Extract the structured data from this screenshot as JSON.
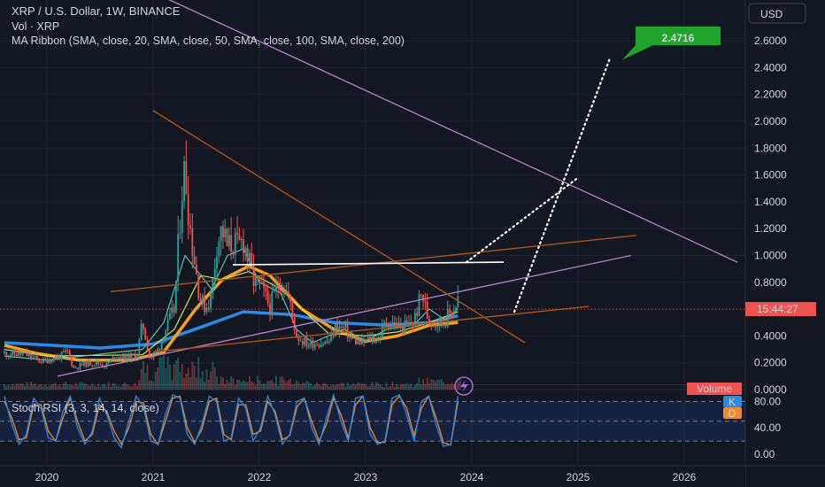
{
  "header": {
    "symbol_line": "XRP / U.S. Dollar, 1W, BINANCE",
    "volume_line": "Vol · XRP",
    "ribbon_line": "MA Ribbon (SMA, close, 20, SMA, close, 50, SMA, close, 100, SMA, close, 200)"
  },
  "price_axis": {
    "currency": "USD"
  },
  "stoch": {
    "label": "Stoch RSI (3, 3, 14, 14, close)",
    "k_badge": "K",
    "d_badge": "D"
  },
  "badges": {
    "target": "2.4716",
    "countdown": "15:44:27",
    "volume": "Volume"
  },
  "colors": {
    "background": "#131722",
    "up": "#26a69a",
    "down": "#ef5350",
    "ma20": "#5fc3a8",
    "ma50": "#d8e04a",
    "ma100": "#f7a01e",
    "ma200": "#2a8ae6",
    "purple_line": "#b07cc6",
    "brown_line": "#b0501a",
    "target_green": "#1fa52c",
    "stoch_k": "#2a8ae6",
    "stoch_d": "#ef8a2a"
  },
  "chart_data": [
    {
      "type": "candlestick",
      "title": "XRP / U.S. Dollar, 1W, BINANCE",
      "ylim": [
        0,
        2.8
      ],
      "y_ticks": [
        "2.6000",
        "2.4000",
        "2.2000",
        "2.0000",
        "1.8000",
        "1.6000",
        "1.4000",
        "1.2000",
        "1.0000",
        "0.8000",
        "0.6000",
        "0.4000",
        "0.2000",
        "0.0000"
      ],
      "x_ticks": [
        "2020",
        "2021",
        "2022",
        "2023",
        "2024",
        "2025",
        "2026"
      ],
      "price_path": [
        [
          2019.6,
          0.27
        ],
        [
          2019.8,
          0.26
        ],
        [
          2019.95,
          0.21
        ],
        [
          2020.1,
          0.24
        ],
        [
          2020.2,
          0.28
        ],
        [
          2020.25,
          0.16
        ],
        [
          2020.35,
          0.19
        ],
        [
          2020.45,
          0.2
        ],
        [
          2020.55,
          0.18
        ],
        [
          2020.65,
          0.25
        ],
        [
          2020.75,
          0.24
        ],
        [
          2020.85,
          0.26
        ],
        [
          2020.9,
          0.5
        ],
        [
          2020.97,
          0.23
        ],
        [
          2021.05,
          0.3
        ],
        [
          2021.12,
          0.45
        ],
        [
          2021.2,
          0.6
        ],
        [
          2021.27,
          1.5
        ],
        [
          2021.3,
          1.65
        ],
        [
          2021.35,
          1.2
        ],
        [
          2021.4,
          0.9
        ],
        [
          2021.45,
          0.65
        ],
        [
          2021.5,
          0.62
        ],
        [
          2021.55,
          0.72
        ],
        [
          2021.6,
          1.1
        ],
        [
          2021.65,
          1.2
        ],
        [
          2021.7,
          1.05
        ],
        [
          2021.75,
          1.1
        ],
        [
          2021.8,
          1.05
        ],
        [
          2021.85,
          1.12
        ],
        [
          2021.9,
          0.95
        ],
        [
          2021.95,
          0.8
        ],
        [
          2022.0,
          0.78
        ],
        [
          2022.1,
          0.62
        ],
        [
          2022.2,
          0.82
        ],
        [
          2022.27,
          0.7
        ],
        [
          2022.35,
          0.4
        ],
        [
          2022.45,
          0.34
        ],
        [
          2022.55,
          0.35
        ],
        [
          2022.65,
          0.35
        ],
        [
          2022.72,
          0.47
        ],
        [
          2022.8,
          0.45
        ],
        [
          2022.87,
          0.38
        ],
        [
          2022.95,
          0.34
        ],
        [
          2023.05,
          0.38
        ],
        [
          2023.12,
          0.38
        ],
        [
          2023.2,
          0.52
        ],
        [
          2023.27,
          0.48
        ],
        [
          2023.35,
          0.46
        ],
        [
          2023.45,
          0.5
        ],
        [
          2023.53,
          0.72
        ],
        [
          2023.58,
          0.55
        ],
        [
          2023.65,
          0.5
        ],
        [
          2023.72,
          0.5
        ],
        [
          2023.78,
          0.55
        ],
        [
          2023.84,
          0.62
        ],
        [
          2023.87,
          0.68
        ]
      ],
      "ma_ribbon": {
        "ma20": [
          [
            2019.6,
            0.25
          ],
          [
            2020.0,
            0.22
          ],
          [
            2020.9,
            0.3
          ],
          [
            2021.1,
            0.5
          ],
          [
            2021.3,
            1.0
          ],
          [
            2021.45,
            0.85
          ],
          [
            2021.55,
            0.75
          ],
          [
            2021.7,
            1.0
          ],
          [
            2021.85,
            1.05
          ],
          [
            2022.0,
            0.8
          ],
          [
            2022.2,
            0.72
          ],
          [
            2022.35,
            0.45
          ],
          [
            2022.5,
            0.35
          ],
          [
            2022.8,
            0.45
          ],
          [
            2023.0,
            0.36
          ],
          [
            2023.2,
            0.45
          ],
          [
            2023.45,
            0.48
          ],
          [
            2023.6,
            0.6
          ],
          [
            2023.75,
            0.52
          ],
          [
            2023.87,
            0.6
          ]
        ],
        "ma50": [
          [
            2019.6,
            0.3
          ],
          [
            2020.0,
            0.25
          ],
          [
            2020.9,
            0.26
          ],
          [
            2021.2,
            0.45
          ],
          [
            2021.45,
            0.85
          ],
          [
            2021.65,
            0.82
          ],
          [
            2021.9,
            0.88
          ],
          [
            2022.2,
            0.75
          ],
          [
            2022.4,
            0.6
          ],
          [
            2022.65,
            0.42
          ],
          [
            2023.0,
            0.4
          ],
          [
            2023.3,
            0.43
          ],
          [
            2023.6,
            0.5
          ],
          [
            2023.87,
            0.58
          ]
        ],
        "ma100": [
          [
            2019.6,
            0.33
          ],
          [
            2019.9,
            0.27
          ],
          [
            2020.3,
            0.22
          ],
          [
            2020.8,
            0.22
          ],
          [
            2021.1,
            0.28
          ],
          [
            2021.4,
            0.6
          ],
          [
            2021.65,
            0.82
          ],
          [
            2021.9,
            0.92
          ],
          [
            2022.1,
            0.85
          ],
          [
            2022.4,
            0.6
          ],
          [
            2022.7,
            0.45
          ],
          [
            2023.0,
            0.36
          ],
          [
            2023.3,
            0.4
          ],
          [
            2023.6,
            0.48
          ],
          [
            2023.87,
            0.5
          ]
        ],
        "ma200": [
          [
            2019.6,
            0.35
          ],
          [
            2020.5,
            0.31
          ],
          [
            2021.0,
            0.34
          ],
          [
            2021.5,
            0.48
          ],
          [
            2021.85,
            0.58
          ],
          [
            2022.3,
            0.56
          ],
          [
            2022.7,
            0.5
          ],
          [
            2023.2,
            0.48
          ],
          [
            2023.6,
            0.5
          ],
          [
            2023.87,
            0.55
          ]
        ]
      },
      "trend_lines": [
        {
          "color": "purple",
          "from": [
            2019.2,
            3.62
          ],
          "to": [
            2026.5,
            0.95
          ]
        },
        {
          "color": "purple",
          "from": [
            2020.1,
            0.1
          ],
          "to": [
            2025.5,
            1.0
          ]
        },
        {
          "color": "brown",
          "from": [
            2021.0,
            2.08
          ],
          "to": [
            2024.5,
            0.35
          ]
        },
        {
          "color": "brown",
          "from": [
            2020.6,
            0.73
          ],
          "to": [
            2025.55,
            1.15
          ]
        },
        {
          "color": "brown",
          "from": [
            2021.0,
            0.28
          ],
          "to": [
            2025.1,
            0.62
          ]
        },
        {
          "color": "white",
          "from": [
            2021.75,
            0.93
          ],
          "to": [
            2024.3,
            0.95
          ]
        }
      ],
      "projections": [
        {
          "style": "dotted",
          "from": [
            2023.95,
            0.95
          ],
          "to": [
            2025.0,
            1.58
          ]
        },
        {
          "style": "dotted",
          "from": [
            2024.4,
            0.58
          ],
          "to": [
            2025.3,
            2.47
          ]
        }
      ],
      "target_value": 2.4716,
      "current_price_line": 0.6
    },
    {
      "type": "line",
      "title": "Stoch RSI (3, 3, 14, 14, close)",
      "ylim": [
        0,
        100
      ],
      "y_ticks": [
        "80.00",
        "40.00",
        "0.00"
      ],
      "bands": [
        20,
        50,
        80
      ],
      "series": [
        {
          "name": "K",
          "values": [
            88,
            45,
            15,
            30,
            85,
            70,
            25,
            20,
            65,
            88,
            40,
            15,
            35,
            85,
            60,
            25,
            10,
            50,
            88,
            72,
            20,
            15,
            60,
            90,
            85,
            30,
            15,
            45,
            88,
            80,
            20,
            25,
            85,
            70,
            20,
            40,
            88,
            60,
            15,
            30,
            80,
            85,
            40,
            15,
            55,
            90,
            50,
            20,
            85,
            88,
            30,
            15,
            20,
            85,
            90,
            60,
            20,
            80,
            88,
            45,
            12,
            15,
            88
          ]
        },
        {
          "name": "D",
          "values": [
            80,
            55,
            22,
            25,
            75,
            75,
            35,
            20,
            55,
            85,
            50,
            20,
            30,
            75,
            65,
            35,
            15,
            40,
            80,
            78,
            30,
            15,
            50,
            85,
            88,
            40,
            18,
            38,
            80,
            85,
            30,
            22,
            75,
            75,
            30,
            35,
            80,
            65,
            22,
            28,
            72,
            85,
            50,
            20,
            45,
            85,
            60,
            25,
            75,
            88,
            40,
            18,
            18,
            75,
            88,
            70,
            28,
            70,
            88,
            55,
            18,
            14,
            80
          ]
        }
      ]
    }
  ]
}
